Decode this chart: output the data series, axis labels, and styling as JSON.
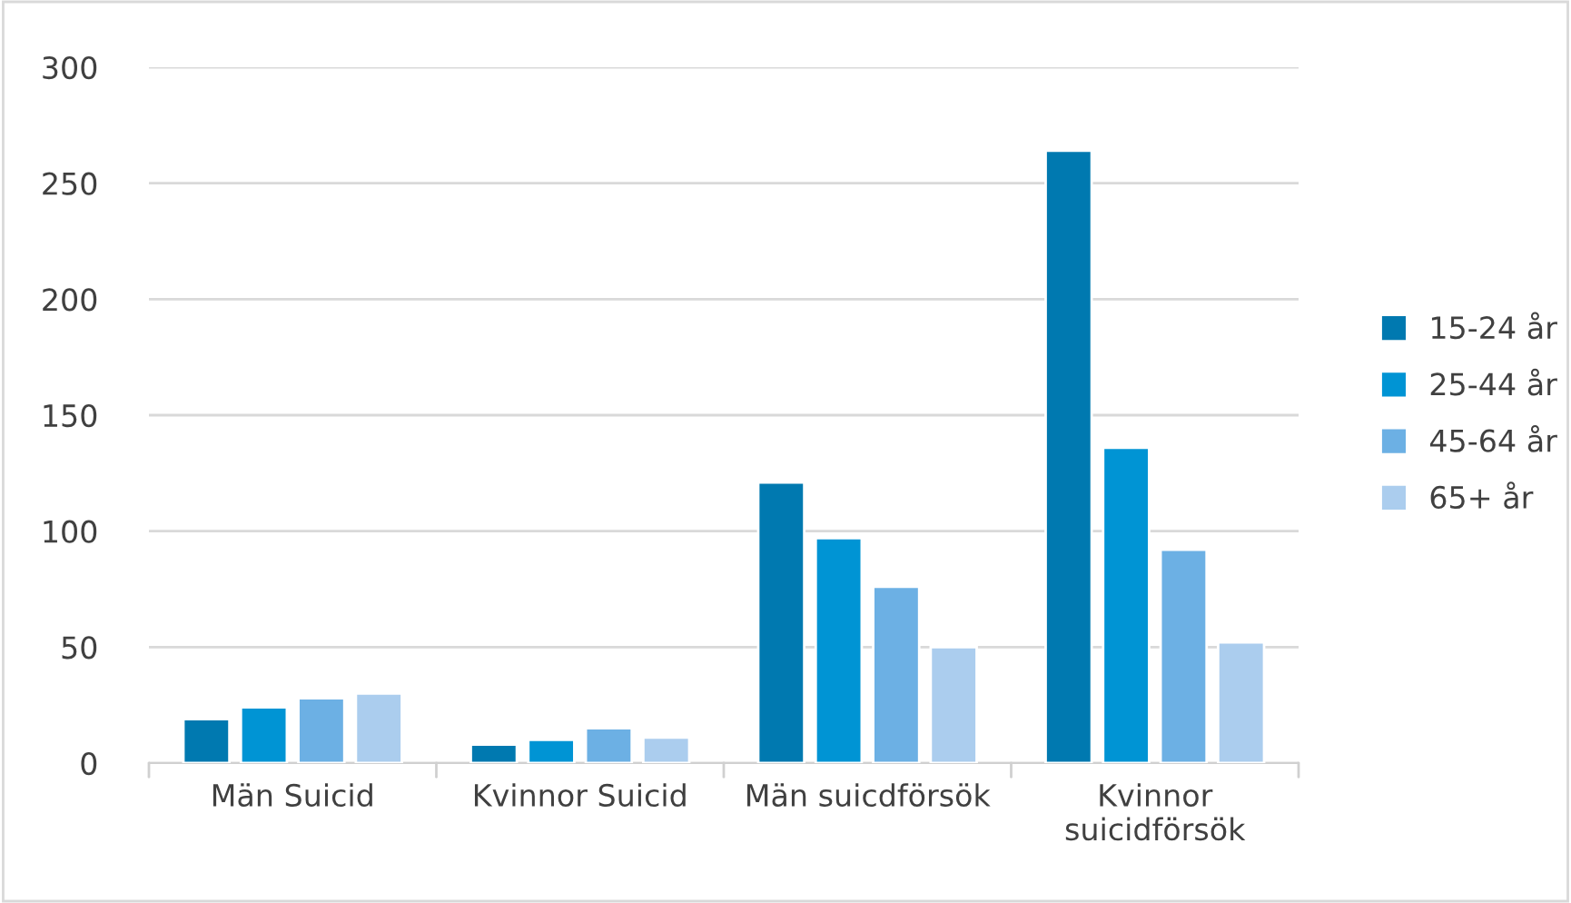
{
  "chart_data": {
    "type": "bar",
    "categories": [
      "Män Suicid",
      "Kvinnor Suicid",
      "Män suicdförsök",
      "Kvinnor\nsuicidförsök"
    ],
    "series": [
      {
        "name": "15-24 år",
        "color": "#0079b0",
        "values": [
          19,
          8,
          121,
          264
        ]
      },
      {
        "name": "25-44 år",
        "color": "#0094d4",
        "values": [
          24,
          10,
          97,
          136
        ]
      },
      {
        "name": "45-64 år",
        "color": "#6cb0e4",
        "values": [
          28,
          15,
          76,
          92
        ]
      },
      {
        "name": "65+ år",
        "color": "#abcdee",
        "values": [
          30,
          11,
          50,
          52
        ]
      }
    ],
    "ylim": [
      0,
      300
    ],
    "yticks": [
      0,
      50,
      100,
      150,
      200,
      250,
      300
    ],
    "grid": "y",
    "legend": "right"
  }
}
